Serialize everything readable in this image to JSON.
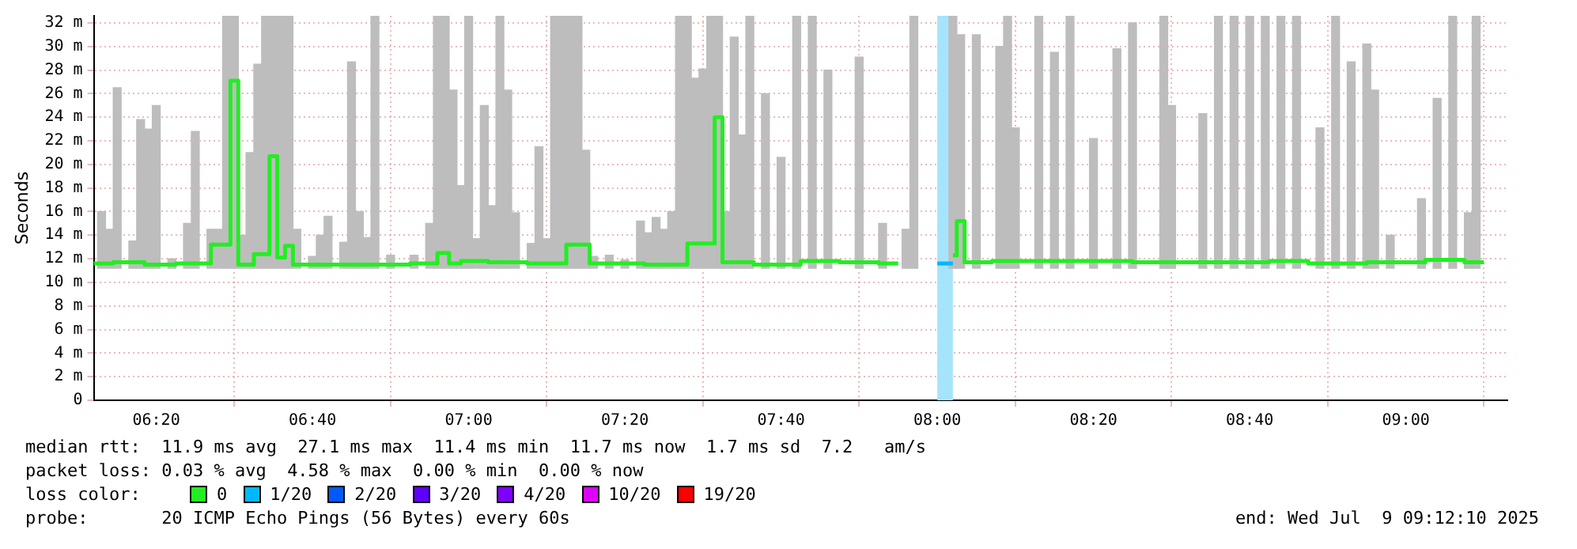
{
  "chart_data": {
    "type": "step",
    "ylabel": "Seconds",
    "legend_title": "loss color:",
    "legend": "bottom",
    "grid": true,
    "xlim": [
      "2025-07-09T06:12",
      "2025-07-09T09:13"
    ],
    "xticks": [
      {
        "value": "2025-07-09T06:20",
        "label": "06:20"
      },
      {
        "value": "2025-07-09T06:40",
        "label": "06:40"
      },
      {
        "value": "2025-07-09T07:00",
        "label": "07:00"
      },
      {
        "value": "2025-07-09T07:20",
        "label": "07:20"
      },
      {
        "value": "2025-07-09T07:40",
        "label": "07:40"
      },
      {
        "value": "2025-07-09T08:00",
        "label": "08:00"
      },
      {
        "value": "2025-07-09T08:20",
        "label": "08:20"
      },
      {
        "value": "2025-07-09T08:40",
        "label": "08:40"
      },
      {
        "value": "2025-07-09T09:00",
        "label": "09:00"
      }
    ],
    "ylim": [
      0,
      32.6
    ],
    "yticks": [
      0,
      {
        "value": 2,
        "label": "2 m"
      },
      {
        "value": 4,
        "label": "4 m"
      },
      {
        "value": 6,
        "label": "6 m"
      },
      {
        "value": 8,
        "label": "8 m"
      },
      {
        "value": 10,
        "label": "10 m"
      },
      {
        "value": 12,
        "label": "12 m"
      },
      {
        "value": 14,
        "label": "14 m"
      },
      {
        "value": 16,
        "label": "16 m"
      },
      {
        "value": 18,
        "label": "18 m"
      },
      {
        "value": 20,
        "label": "20 m"
      },
      {
        "value": 22,
        "label": "22 m"
      },
      {
        "value": 24,
        "label": "24 m"
      },
      {
        "value": 26,
        "label": "26 m"
      },
      {
        "value": 28,
        "label": "28 m"
      },
      {
        "value": 30,
        "label": "30 m"
      },
      {
        "value": 32,
        "label": "32 m"
      }
    ],
    "bands": [
      {
        "axis": "x",
        "from": "2025-07-09T08:00",
        "to": "2025-07-09T08:02",
        "color": "#a6e4fc"
      }
    ],
    "series": [
      {
        "type": "bar",
        "color": "#bdbdbd",
        "base": [
          11.2,
          11.2,
          11.2,
          11.2,
          11.2,
          11.2,
          11.2,
          11.2,
          11.2,
          11.2,
          11.2,
          11.2,
          11.2,
          11.2,
          11.2,
          11.2,
          11.2,
          11.2,
          11.2,
          11.2,
          11.2,
          11.2,
          11.2,
          11.2,
          11.2,
          11.2,
          11.2,
          11.2,
          11.2,
          11.2,
          11.2,
          11.2,
          11.2,
          11.2,
          11.2,
          11.2,
          11.2,
          11.2,
          11.2,
          11.2,
          11.2,
          11.2,
          11.2,
          11.2,
          11.2,
          11.2,
          11.2,
          11.2,
          11.2,
          11.2,
          11.2,
          11.2,
          11.2,
          11.2,
          11.2,
          11.2,
          11.2,
          11.2,
          11.2,
          11.2,
          11.2,
          11.2,
          11.2,
          11.2,
          11.2,
          11.2,
          11.2,
          11.2,
          11.2,
          11.2,
          11.2,
          11.2,
          11.2,
          11.2,
          11.2,
          11.2,
          11.2,
          11.2,
          11.2,
          11.2,
          11.2,
          11.2,
          11.2,
          11.2,
          11.2,
          11.2,
          11.2,
          11.2,
          11.2,
          11.2,
          11.2,
          11.2,
          11.2,
          11.2,
          11.2,
          11.2,
          11.2,
          11.2,
          11.2,
          11.2,
          11.2,
          11.2,
          11.2,
          11.2,
          11.2,
          11.2,
          11.2,
          11.2,
          11.2,
          11.2,
          11.2
        ],
        "x": [
          "2025-07-09T06:13",
          "2025-07-09T06:14",
          "2025-07-09T06:15",
          "2025-07-09T06:17",
          "2025-07-09T06:18",
          "2025-07-09T06:19",
          "2025-07-09T06:20",
          "2025-07-09T06:22",
          "2025-07-09T06:24",
          "2025-07-09T06:25",
          "2025-07-09T06:27",
          "2025-07-09T06:28",
          "2025-07-09T06:29",
          "2025-07-09T06:30",
          "2025-07-09T06:31",
          "2025-07-09T06:32",
          "2025-07-09T06:33",
          "2025-07-09T06:34",
          "2025-07-09T06:35",
          "2025-07-09T06:36",
          "2025-07-09T06:37",
          "2025-07-09T06:38",
          "2025-07-09T06:40",
          "2025-07-09T06:41",
          "2025-07-09T06:42",
          "2025-07-09T06:44",
          "2025-07-09T06:45",
          "2025-07-09T06:46",
          "2025-07-09T06:47",
          "2025-07-09T06:48",
          "2025-07-09T06:50",
          "2025-07-09T06:53",
          "2025-07-09T06:55",
          "2025-07-09T06:56",
          "2025-07-09T06:57",
          "2025-07-09T06:58",
          "2025-07-09T06:59",
          "2025-07-09T07:00",
          "2025-07-09T07:01",
          "2025-07-09T07:02",
          "2025-07-09T07:03",
          "2025-07-09T07:04",
          "2025-07-09T07:05",
          "2025-07-09T07:06",
          "2025-07-09T07:08",
          "2025-07-09T07:09",
          "2025-07-09T07:10",
          "2025-07-09T07:11",
          "2025-07-09T07:12",
          "2025-07-09T07:13",
          "2025-07-09T07:14",
          "2025-07-09T07:15",
          "2025-07-09T07:16",
          "2025-07-09T07:18",
          "2025-07-09T07:20",
          "2025-07-09T07:22",
          "2025-07-09T07:23",
          "2025-07-09T07:24",
          "2025-07-09T07:25",
          "2025-07-09T07:26",
          "2025-07-09T07:27",
          "2025-07-09T07:28",
          "2025-07-09T07:29",
          "2025-07-09T07:30",
          "2025-07-09T07:31",
          "2025-07-09T07:32",
          "2025-07-09T07:33",
          "2025-07-09T07:34",
          "2025-07-09T07:35",
          "2025-07-09T07:36",
          "2025-07-09T07:38",
          "2025-07-09T07:40",
          "2025-07-09T07:42",
          "2025-07-09T07:44",
          "2025-07-09T07:46",
          "2025-07-09T07:50",
          "2025-07-09T07:53",
          "2025-07-09T07:56",
          "2025-07-09T07:57",
          "2025-07-09T08:02",
          "2025-07-09T08:03",
          "2025-07-09T08:05",
          "2025-07-09T08:08",
          "2025-07-09T08:09",
          "2025-07-09T08:10",
          "2025-07-09T08:13",
          "2025-07-09T08:15",
          "2025-07-09T08:17",
          "2025-07-09T08:20",
          "2025-07-09T08:23",
          "2025-07-09T08:25",
          "2025-07-09T08:29",
          "2025-07-09T08:30",
          "2025-07-09T08:34",
          "2025-07-09T08:36",
          "2025-07-09T08:38",
          "2025-07-09T08:40",
          "2025-07-09T08:42",
          "2025-07-09T08:44",
          "2025-07-09T08:46",
          "2025-07-09T08:49",
          "2025-07-09T08:51",
          "2025-07-09T08:53",
          "2025-07-09T08:55",
          "2025-07-09T08:56",
          "2025-07-09T08:58",
          "2025-07-09T09:02",
          "2025-07-09T09:04",
          "2025-07-09T09:06",
          "2025-07-09T09:08",
          "2025-07-09T09:09"
        ],
        "values": [
          4.8,
          3.3,
          15.3,
          2.3,
          12.6,
          11.8,
          13.8,
          0.8,
          3.8,
          11.6,
          3.3,
          3.3,
          21.4,
          21.4,
          2.8,
          9.8,
          17.3,
          21.4,
          21.4,
          21.4,
          21.4,
          3.3,
          1.0,
          2.8,
          4.4,
          2.2,
          17.5,
          4.8,
          2.6,
          21.4,
          1.1,
          1.1,
          3.8,
          21.4,
          21.4,
          15.1,
          7.0,
          21.4,
          2.5,
          13.8,
          5.3,
          21.4,
          15.1,
          4.7,
          2.1,
          10.3,
          2.5,
          21.4,
          21.4,
          21.4,
          21.4,
          10.0,
          1.0,
          1.1,
          0.7,
          4.0,
          3.0,
          4.3,
          3.3,
          4.8,
          21.4,
          21.4,
          16.1,
          16.9,
          21.4,
          21.4,
          4.8,
          19.6,
          11.3,
          21.4,
          14.8,
          9.4,
          21.4,
          21.4,
          16.8,
          17.9,
          3.8,
          3.3,
          21.4,
          21.4,
          19.8,
          19.8,
          18.8,
          21.4,
          11.9,
          21.4,
          18.3,
          21.4,
          11.0,
          18.6,
          20.8,
          21.4,
          13.8,
          13.1,
          21.4,
          21.4,
          21.4,
          21.4,
          21.4,
          21.4,
          11.9,
          21.4,
          17.5,
          19.0,
          15.1,
          2.8,
          5.9,
          14.4,
          21.4,
          4.7,
          21.4
        ]
      },
      {
        "name": "0",
        "color": "#22ee22",
        "x": [
          "2025-07-09T06:12",
          "2025-07-09T06:17",
          "2025-07-09T06:20",
          "2025-07-09T06:25",
          "2025-07-09T06:29",
          "2025-07-09T06:30",
          "2025-07-09T06:31",
          "2025-07-09T06:34",
          "2025-07-09T06:35",
          "2025-07-09T06:36",
          "2025-07-09T06:37",
          "2025-07-09T06:38",
          "2025-07-09T06:45",
          "2025-07-09T06:50",
          "2025-07-09T06:55",
          "2025-07-09T06:57",
          "2025-07-09T06:58",
          "2025-07-09T07:00",
          "2025-07-09T07:05",
          "2025-07-09T07:10",
          "2025-07-09T07:15",
          "2025-07-09T07:16",
          "2025-07-09T07:20",
          "2025-07-09T07:25",
          "2025-07-09T07:31",
          "2025-07-09T07:32",
          "2025-07-09T07:33",
          "2025-07-09T07:40",
          "2025-07-09T07:45",
          "2025-07-09T07:50",
          "2025-07-09T07:55",
          "2025-07-09T08:00",
          "2025-07-09T08:02",
          "2025-07-09T08:03",
          "2025-07-09T08:04",
          "2025-07-09T08:10",
          "2025-07-09T08:20",
          "2025-07-09T08:30",
          "2025-07-09T08:40",
          "2025-07-09T08:45",
          "2025-07-09T08:50",
          "2025-07-09T09:00",
          "2025-07-09T09:05",
          "2025-07-09T09:10"
        ],
        "values": [
          11.6,
          11.7,
          11.5,
          11.6,
          13.2,
          27.1,
          11.5,
          12.4,
          20.7,
          12.1,
          13.1,
          11.5,
          11.5,
          11.5,
          11.6,
          12.5,
          11.6,
          11.8,
          11.7,
          11.6,
          13.2,
          11.6,
          11.6,
          11.5,
          13.3,
          24.0,
          11.7,
          11.5,
          11.8,
          11.7,
          11.6,
          null,
          12.3,
          15.2,
          11.7,
          11.8,
          11.8,
          11.7,
          11.7,
          11.8,
          11.6,
          11.7,
          11.9,
          11.7
        ]
      },
      {
        "name": "1/20",
        "color": "#00b8ff",
        "x": [
          "2025-07-09T08:00",
          "2025-07-09T08:02"
        ],
        "values": [
          11.6,
          11.6
        ]
      },
      {
        "name": "2/20",
        "color": "#0059ff"
      },
      {
        "name": "3/20",
        "color": "#5e00ff"
      },
      {
        "name": "4/20",
        "color": "#7e00ff"
      },
      {
        "name": "10/20",
        "color": "#dd00ff"
      },
      {
        "name": "19/20",
        "color": "#ff0000"
      }
    ],
    "annotations": [
      "median rtt:  11.9 ms avg  27.1 ms max  11.4 ms min  11.7 ms now  1.7 ms sd  7.2   am/s",
      "packet loss: 0.03 % avg  4.58 % max  0.00 % min  0.00 % now",
      "probe:       20 ICMP Echo Pings (56 Bytes) every 60s",
      "end: Wed Jul  9 09:12:10 2025"
    ]
  }
}
